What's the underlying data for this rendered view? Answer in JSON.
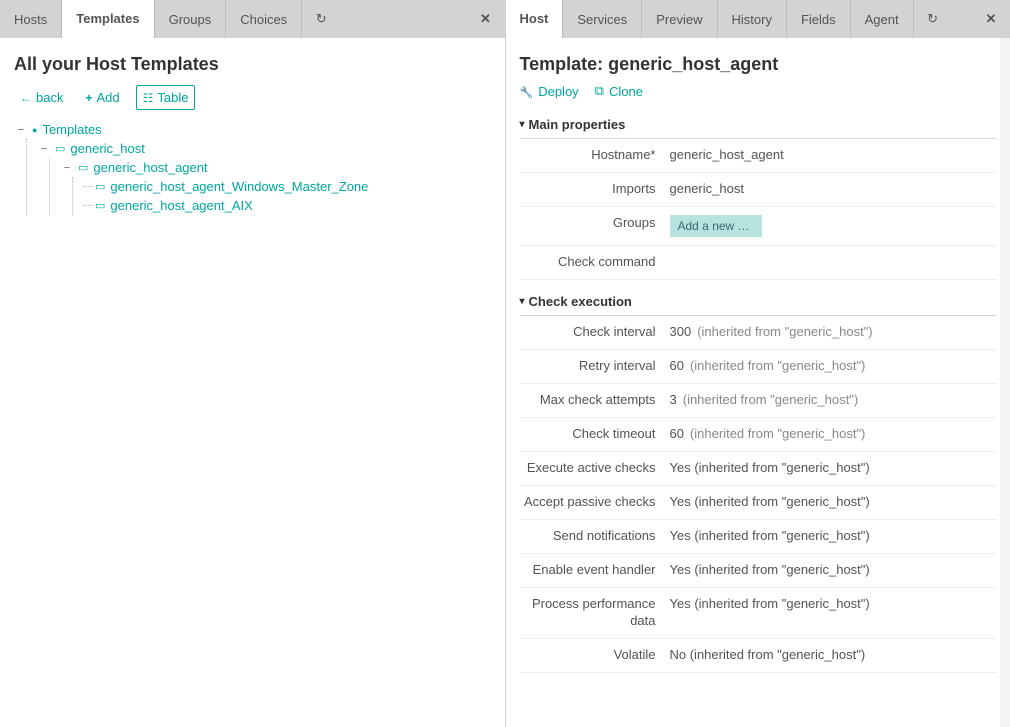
{
  "colors": {
    "accent": "#00a6a0",
    "tabbar_bg": "#d3d3d3",
    "border": "#d0d0d0",
    "text": "#535353",
    "muted": "#888888",
    "pill_bg": "#b6e2e0"
  },
  "left": {
    "tabs": [
      {
        "id": "hosts",
        "label": "Hosts",
        "active": false
      },
      {
        "id": "templates",
        "label": "Templates",
        "active": true
      },
      {
        "id": "groups",
        "label": "Groups",
        "active": false
      },
      {
        "id": "choices",
        "label": "Choices",
        "active": false
      }
    ],
    "title": "All your Host Templates",
    "toolbar": {
      "back": "back",
      "add": "Add",
      "table": "Table"
    },
    "tree": {
      "root": {
        "label": "Templates",
        "icon": "globe",
        "expanded": true,
        "children": [
          {
            "label": "generic_host",
            "icon": "host",
            "expanded": true,
            "children": [
              {
                "label": "generic_host_agent",
                "icon": "host",
                "expanded": true,
                "children": [
                  {
                    "label": "generic_host_agent_Windows_Master_Zone",
                    "icon": "host"
                  },
                  {
                    "label": "generic_host_agent_AIX",
                    "icon": "host"
                  }
                ]
              }
            ]
          }
        ]
      }
    }
  },
  "right": {
    "tabs": [
      {
        "id": "host",
        "label": "Host",
        "active": true
      },
      {
        "id": "services",
        "label": "Services",
        "active": false
      },
      {
        "id": "preview",
        "label": "Preview",
        "active": false
      },
      {
        "id": "history",
        "label": "History",
        "active": false
      },
      {
        "id": "fields",
        "label": "Fields",
        "active": false
      },
      {
        "id": "agent",
        "label": "Agent",
        "active": false
      }
    ],
    "title": "Template: generic_host_agent",
    "actions": {
      "deploy": "Deploy",
      "clone": "Clone"
    },
    "sections": {
      "main": {
        "title": "Main properties",
        "rows": {
          "hostname": {
            "label": "Hostname*",
            "value": "generic_host_agent"
          },
          "imports": {
            "label": "Imports",
            "value": "generic_host"
          },
          "groups": {
            "label": "Groups",
            "placeholder": "Add a new o…"
          },
          "check_command": {
            "label": "Check command",
            "value": ""
          }
        }
      },
      "exec": {
        "title": "Check execution",
        "rows": {
          "check_interval": {
            "label": "Check interval",
            "value": "300",
            "inherited": "(inherited from \"generic_host\")"
          },
          "retry_interval": {
            "label": "Retry interval",
            "value": "60",
            "inherited": "(inherited from \"generic_host\")"
          },
          "max_attempts": {
            "label": "Max check attempts",
            "value": "3",
            "inherited": "(inherited from \"generic_host\")"
          },
          "check_timeout": {
            "label": "Check timeout",
            "value": "60",
            "inherited": "(inherited from \"generic_host\")"
          },
          "active_checks": {
            "label": "Execute active checks",
            "value": "Yes (inherited from \"generic_host\")"
          },
          "passive_checks": {
            "label": "Accept passive checks",
            "value": "Yes (inherited from \"generic_host\")"
          },
          "notifications": {
            "label": "Send notifications",
            "value": "Yes (inherited from \"generic_host\")"
          },
          "event_handler": {
            "label": "Enable event handler",
            "value": "Yes (inherited from \"generic_host\")"
          },
          "perf_data": {
            "label": "Process performance data",
            "value": "Yes (inherited from \"generic_host\")"
          },
          "volatile": {
            "label": "Volatile",
            "value": "No (inherited from \"generic_host\")"
          }
        }
      }
    }
  }
}
